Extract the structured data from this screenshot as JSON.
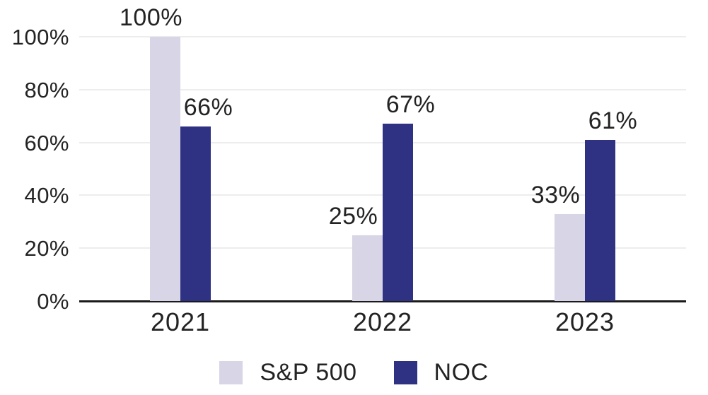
{
  "chart_data": {
    "type": "bar",
    "categories": [
      "2021",
      "2022",
      "2023"
    ],
    "series": [
      {
        "name": "S&P 500",
        "color": "#D7D5E6",
        "values": [
          100,
          25,
          33
        ]
      },
      {
        "name": "NOC",
        "color": "#2F3183",
        "values": [
          66,
          67,
          61
        ]
      }
    ],
    "bar_value_labels": [
      [
        "100%",
        "25%",
        "33%"
      ],
      [
        "66%",
        "67%",
        "61%"
      ]
    ],
    "title": "",
    "xlabel": "",
    "ylabel": "",
    "ylim": [
      0,
      100
    ],
    "yticks": [
      0,
      20,
      40,
      60,
      80,
      100
    ],
    "ytick_labels": [
      "0%",
      "20%",
      "40%",
      "60%",
      "80%",
      "100%"
    ],
    "grid": "horizontal",
    "legend_position": "bottom",
    "grid_color": "#EDEDED",
    "axis_color": "#1A1A1A",
    "text_color": "#232323",
    "background_color": "#FFFFFF"
  }
}
